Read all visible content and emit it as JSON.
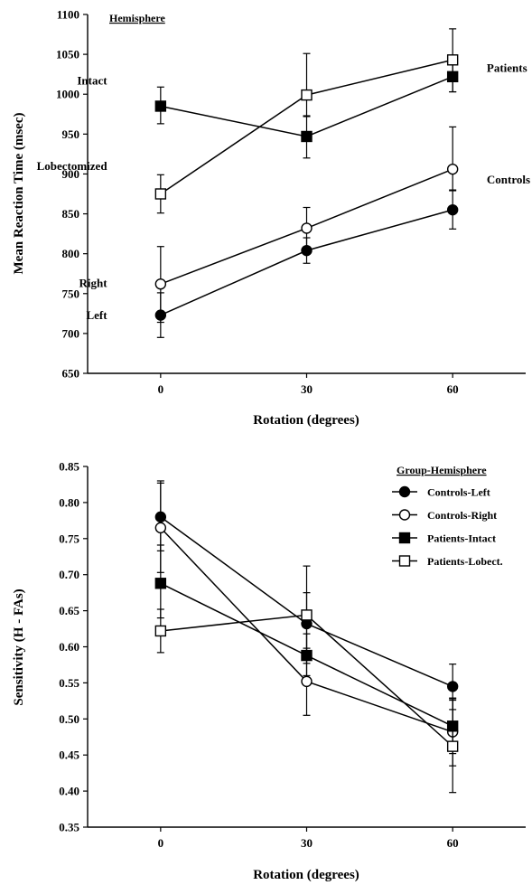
{
  "chart_data": [
    {
      "type": "line",
      "title": "",
      "xlabel": "Rotation (degrees)",
      "ylabel": "Mean Reaction Time (msec)",
      "x": [
        0,
        30,
        60
      ],
      "x_ticks": [
        "0",
        "30",
        "60"
      ],
      "xlim": [
        -15,
        75
      ],
      "ylim": [
        650,
        1100
      ],
      "y_ticks": [
        650,
        700,
        750,
        800,
        850,
        900,
        950,
        1000,
        1050,
        1100
      ],
      "legend_title": "Hemisphere",
      "series": [
        {
          "name": "Intact",
          "marker": "square",
          "fill": "filled",
          "values": [
            985,
            947,
            1022
          ],
          "err_low": [
            963,
            920,
            1003
          ],
          "err_high": [
            1009,
            973,
            1040
          ]
        },
        {
          "name": "Lobectomized",
          "marker": "square",
          "fill": "open",
          "values": [
            875,
            999,
            1043
          ],
          "err_low": [
            851,
            972,
            1003
          ],
          "err_high": [
            899,
            1051,
            1082
          ]
        },
        {
          "name": "Right",
          "marker": "circle",
          "fill": "open",
          "values": [
            762,
            832,
            906
          ],
          "err_low": [
            714,
            805,
            880
          ],
          "err_high": [
            809,
            858,
            959
          ]
        },
        {
          "name": "Left",
          "marker": "circle",
          "fill": "filled",
          "values": [
            723,
            804,
            855
          ],
          "err_low": [
            695,
            788,
            831
          ],
          "err_high": [
            751,
            820,
            879
          ]
        }
      ],
      "annotations": [
        {
          "text": "Intact",
          "x": -11,
          "y": 1012
        },
        {
          "text": "Lobectomized",
          "x": -11,
          "y": 905
        },
        {
          "text": "Right",
          "x": -11,
          "y": 758
        },
        {
          "text": "Left",
          "x": -11,
          "y": 718
        },
        {
          "text": "Patients",
          "x": 67,
          "y": 1028
        },
        {
          "text": "Controls",
          "x": 67,
          "y": 888
        }
      ]
    },
    {
      "type": "line",
      "title": "",
      "xlabel": "Rotation (degrees)",
      "ylabel": "Sensitivity (H - FAs)",
      "x": [
        0,
        30,
        60
      ],
      "x_ticks": [
        "0",
        "30",
        "60"
      ],
      "xlim": [
        -15,
        75
      ],
      "ylim": [
        0.35,
        0.85
      ],
      "y_ticks": [
        0.35,
        0.4,
        0.45,
        0.5,
        0.55,
        0.6,
        0.65,
        0.7,
        0.75,
        0.8,
        0.85
      ],
      "legend_title": "Group-Hemisphere",
      "legend_position": "top-right",
      "series": [
        {
          "name": "Controls-Left",
          "marker": "circle",
          "fill": "filled",
          "values": [
            0.78,
            0.632,
            0.545
          ],
          "err_low": [
            0.733,
            0.592,
            0.513
          ],
          "err_high": [
            0.827,
            0.675,
            0.576
          ]
        },
        {
          "name": "Controls-Right",
          "marker": "circle",
          "fill": "open",
          "values": [
            0.765,
            0.552,
            0.482
          ],
          "err_low": [
            0.703,
            0.505,
            0.435
          ],
          "err_high": [
            0.83,
            0.598,
            0.529
          ]
        },
        {
          "name": "Patients-Intact",
          "marker": "square",
          "fill": "filled",
          "values": [
            0.688,
            0.588,
            0.49
          ],
          "err_low": [
            0.64,
            0.56,
            0.452
          ],
          "err_high": [
            0.741,
            0.618,
            0.528
          ]
        },
        {
          "name": "Patients-Lobect.",
          "marker": "square",
          "fill": "open",
          "values": [
            0.622,
            0.644,
            0.462
          ],
          "err_low": [
            0.592,
            0.577,
            0.398
          ],
          "err_high": [
            0.652,
            0.712,
            0.526
          ]
        }
      ]
    }
  ],
  "figure": {
    "background": "#ffffff",
    "ink": "#000000"
  }
}
